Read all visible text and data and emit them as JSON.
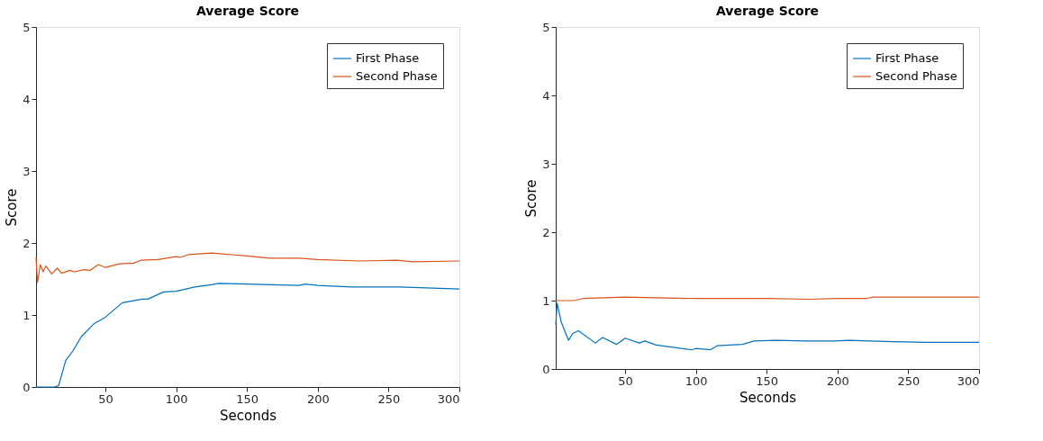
{
  "chart_data": [
    {
      "type": "line",
      "title": "Average Score",
      "xlabel": "Seconds",
      "ylabel": "Score",
      "xlim": [
        1,
        300
      ],
      "xticks": [
        50,
        100,
        150,
        200,
        250,
        300
      ],
      "ylim": [
        0,
        5
      ],
      "yticks": [
        0,
        1,
        2,
        3,
        4,
        5
      ],
      "grid": false,
      "legend": "top right",
      "marker": "none",
      "line_style": "solid",
      "series": [
        {
          "name": "First Phase",
          "color": "#0072bd",
          "x": [
            1,
            14,
            17,
            22,
            27,
            33,
            42,
            50,
            62,
            76,
            80,
            91,
            100,
            113,
            125,
            130,
            150,
            168,
            187,
            191,
            200,
            224,
            258,
            300
          ],
          "values": [
            0,
            0,
            0.02,
            0.37,
            0.5,
            0.7,
            0.88,
            0.97,
            1.17,
            1.22,
            1.22,
            1.32,
            1.33,
            1.39,
            1.42,
            1.44,
            1.43,
            1.42,
            1.41,
            1.43,
            1.41,
            1.39,
            1.39,
            1.36
          ]
        },
        {
          "name": "Second Phase",
          "color": "#d95319",
          "x": [
            1,
            2,
            4,
            6,
            8,
            12,
            16,
            19,
            25,
            28,
            35,
            39,
            45,
            50,
            60,
            70,
            75,
            87,
            100,
            103,
            109,
            125,
            150,
            166,
            187,
            200,
            230,
            256,
            267,
            300
          ],
          "values": [
            1.8,
            1.45,
            1.7,
            1.6,
            1.68,
            1.57,
            1.65,
            1.58,
            1.62,
            1.6,
            1.63,
            1.62,
            1.7,
            1.66,
            1.71,
            1.72,
            1.76,
            1.77,
            1.81,
            1.8,
            1.84,
            1.86,
            1.82,
            1.79,
            1.79,
            1.77,
            1.75,
            1.76,
            1.74,
            1.75
          ]
        }
      ]
    },
    {
      "type": "line",
      "title": "Average Score",
      "xlabel": "Seconds",
      "ylabel": "Score",
      "xlim": [
        1,
        300
      ],
      "xticks": [
        50,
        100,
        150,
        200,
        250,
        300
      ],
      "ylim": [
        0,
        5
      ],
      "yticks": [
        0,
        1,
        2,
        3,
        4,
        5
      ],
      "grid": false,
      "legend": "top right",
      "marker": "none",
      "line_style": "solid",
      "series": [
        {
          "name": "First Phase",
          "color": "#0072bd",
          "x": [
            1,
            2,
            5,
            10,
            13,
            17,
            29,
            34,
            44,
            50,
            60,
            64,
            72,
            97,
            100,
            110,
            115,
            133,
            141,
            157,
            178,
            198,
            208,
            239,
            263,
            300
          ],
          "values": [
            0.65,
            0.96,
            0.68,
            0.42,
            0.52,
            0.56,
            0.38,
            0.46,
            0.36,
            0.45,
            0.38,
            0.41,
            0.35,
            0.28,
            0.3,
            0.28,
            0.34,
            0.36,
            0.41,
            0.42,
            0.41,
            0.41,
            0.42,
            0.4,
            0.39,
            0.39
          ]
        },
        {
          "name": "Second Phase",
          "color": "#d95319",
          "x": [
            1,
            14,
            20,
            50,
            100,
            150,
            180,
            200,
            220,
            225,
            300
          ],
          "values": [
            1.0,
            1.0,
            1.03,
            1.05,
            1.03,
            1.03,
            1.02,
            1.03,
            1.03,
            1.05,
            1.05
          ]
        }
      ]
    }
  ]
}
